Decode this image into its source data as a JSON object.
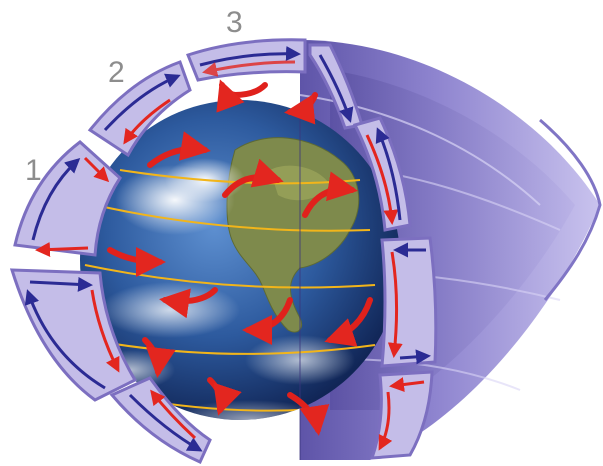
{
  "labels": {
    "cell_1": "1",
    "cell_2": "2",
    "cell_3": "3"
  },
  "colors": {
    "background": "#ffffff",
    "cell_fill": "#c4bde8",
    "cell_edge": "#7c6fc0",
    "shell_light": "#b3aadf",
    "shell_dark": "#6a5fb3",
    "ocean": "#2d5a9e",
    "ocean_deep": "#15306a",
    "land": "#7e8a4c",
    "cloud": "#f2f4f8",
    "latitude_line": "#f2b51a",
    "surface_wind_arrow": "#e0211c",
    "arrow_warm": "#e3261f",
    "arrow_cool": "#2b2b94",
    "label_text": "#8d8d8d"
  }
}
